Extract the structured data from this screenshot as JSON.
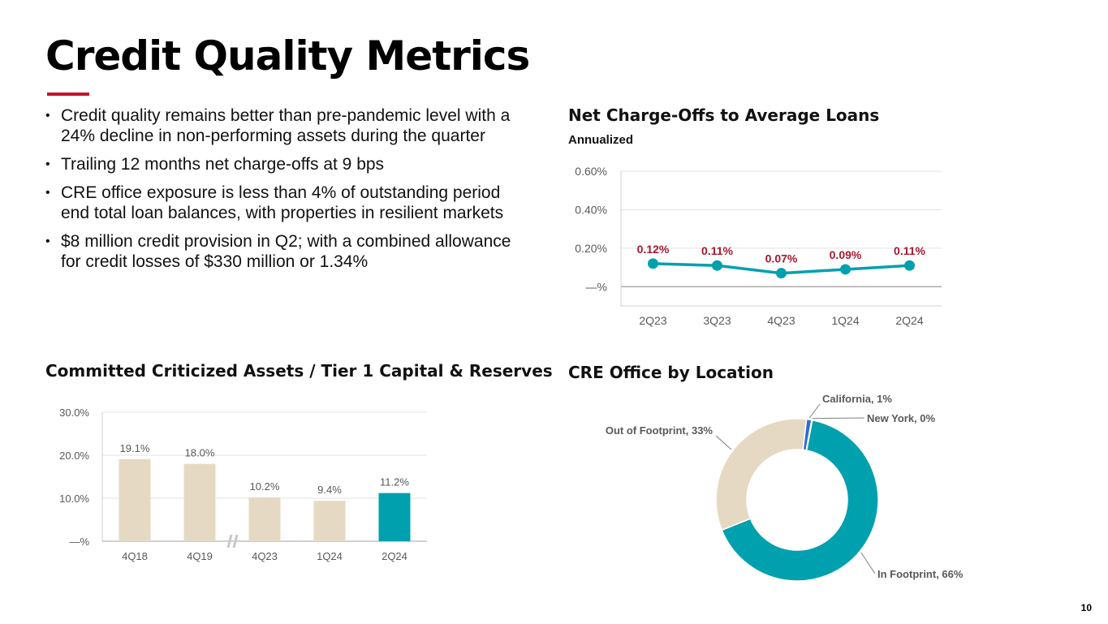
{
  "title": "Credit Quality Metrics",
  "accent_color": "#c8102e",
  "bullets": [
    "Credit quality remains better than pre-pandemic level with a 24% decline in non-performing assets during the quarter",
    "Trailing 12 months net charge-offs at 9 bps",
    "CRE office exposure is less than 4% of outstanding period end total loan balances, with properties in resilient markets",
    "$8 million credit provision in Q2; with a combined allowance for credit losses of $330 million or 1.34%"
  ],
  "page_number": "10",
  "chart_data": [
    {
      "id": "nco",
      "type": "line",
      "title": "Net Charge-Offs to Average Loans",
      "subtitle": "Annualized",
      "categories": [
        "2Q23",
        "3Q23",
        "4Q23",
        "1Q24",
        "2Q24"
      ],
      "values": [
        0.12,
        0.11,
        0.07,
        0.09,
        0.11
      ],
      "value_labels": [
        "0.12%",
        "0.11%",
        "0.07%",
        "0.09%",
        "0.11%"
      ],
      "yticks": [
        {
          "value": 0,
          "label": "—%"
        },
        {
          "value": 0.2,
          "label": "0.20%"
        },
        {
          "value": 0.4,
          "label": "0.40%"
        },
        {
          "value": 0.6,
          "label": "0.60%"
        }
      ],
      "ylim": [
        -0.1,
        0.6
      ],
      "line_color": "#00a0ae",
      "label_color": "#a6192e"
    },
    {
      "id": "criticized",
      "type": "bar",
      "title": "Committed Criticized Assets / Tier 1 Capital & Reserves",
      "categories": [
        "4Q18",
        "4Q19",
        "4Q23",
        "1Q24",
        "2Q24"
      ],
      "values": [
        19.1,
        18.0,
        10.2,
        9.4,
        11.2
      ],
      "value_labels": [
        "19.1%",
        "18.0%",
        "10.2%",
        "9.4%",
        "11.2%"
      ],
      "yticks": [
        {
          "value": 0,
          "label": "—%"
        },
        {
          "value": 10,
          "label": "10.0%"
        },
        {
          "value": 20,
          "label": "20.0%"
        },
        {
          "value": 30,
          "label": "30.0%"
        }
      ],
      "ylim": [
        0,
        30
      ],
      "bar_colors": [
        "#e6d9c3",
        "#e6d9c3",
        "#e6d9c3",
        "#e6d9c3",
        "#00a0ae"
      ],
      "axis_break_after_index": 1
    },
    {
      "id": "cre",
      "type": "pie",
      "title": "CRE Office by Location",
      "slices": [
        {
          "name": "In Footprint",
          "value": 66,
          "label": "In Footprint, 66%",
          "color": "#00a0ae"
        },
        {
          "name": "Out of Footprint",
          "value": 33,
          "label": "Out of Footprint, 33%",
          "color": "#e6d9c3"
        },
        {
          "name": "California",
          "value": 1,
          "label": "California, 1%",
          "color": "#2e6bd9"
        },
        {
          "name": "New York",
          "value": 0.15,
          "label": "New York, 0%",
          "color": "#00a0ae"
        }
      ]
    }
  ]
}
